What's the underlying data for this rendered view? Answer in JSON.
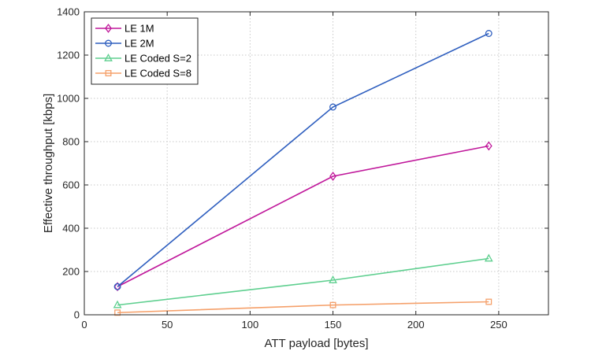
{
  "chart_data": {
    "type": "line",
    "xlabel": "ATT payload [bytes]",
    "ylabel": "Effective throughput [kbps]",
    "xlim": [
      0,
      280
    ],
    "ylim": [
      0,
      1400
    ],
    "x_ticks": [
      0,
      50,
      100,
      150,
      200,
      250
    ],
    "y_ticks": [
      0,
      200,
      400,
      600,
      800,
      1000,
      1200,
      1400
    ],
    "grid": true,
    "legend_position": "top-left",
    "series": [
      {
        "name": "LE 1M",
        "color": "#c0189b",
        "marker": "diamond",
        "x": [
          20,
          150,
          244
        ],
        "values": [
          130,
          640,
          780
        ]
      },
      {
        "name": "LE 2M",
        "color": "#2f5fbf",
        "marker": "circle",
        "x": [
          20,
          150,
          244
        ],
        "values": [
          130,
          960,
          1300
        ]
      },
      {
        "name": "LE Coded S=2",
        "color": "#5ecf8f",
        "marker": "triangle",
        "x": [
          20,
          150,
          244
        ],
        "values": [
          45,
          160,
          260
        ]
      },
      {
        "name": "LE Coded S=8",
        "color": "#f5a06a",
        "marker": "square",
        "x": [
          20,
          150,
          244
        ],
        "values": [
          10,
          45,
          60
        ]
      }
    ]
  }
}
